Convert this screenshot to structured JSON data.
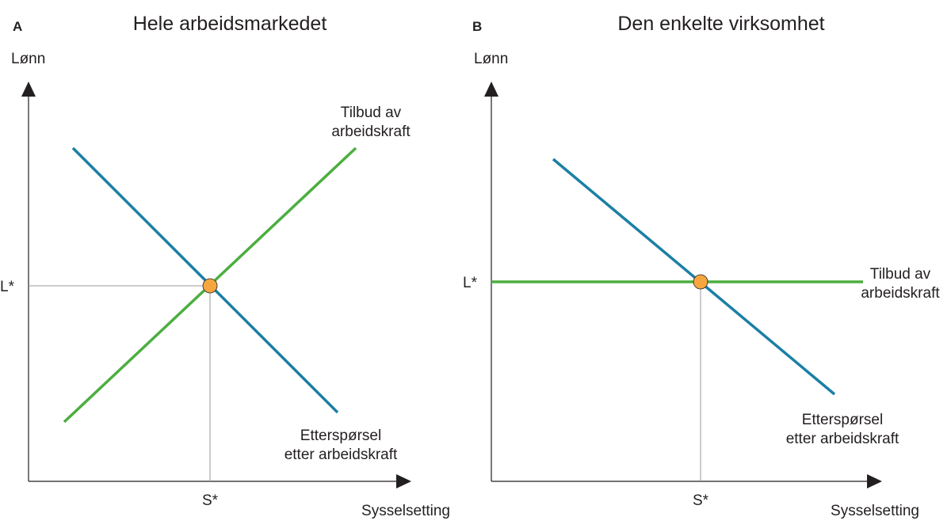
{
  "panels": [
    {
      "letter": "A",
      "title": "Hele arbeidsmarkedet",
      "y_axis_label": "Lønn",
      "x_axis_label": "Sysselsetting",
      "equilibrium_wage_label": "L*",
      "equilibrium_employment_label": "S*",
      "supply_label": [
        "Tilbud av",
        "arbeidskraft"
      ],
      "demand_label": [
        "Etterspørsel",
        "etter arbeidskraft"
      ]
    },
    {
      "letter": "B",
      "title": "Den enkelte virksomhet",
      "y_axis_label": "Lønn",
      "x_axis_label": "Sysselsetting",
      "equilibrium_wage_label": "L*",
      "equilibrium_employment_label": "S*",
      "supply_label": [
        "Tilbud av",
        "arbeidskraft"
      ],
      "demand_label": [
        "Etterspørsel",
        "etter arbeidskraft"
      ]
    }
  ],
  "colors": {
    "supply": "#4cae3f",
    "demand": "#1b7fa6",
    "equilibrium_point": "#f5a63f",
    "axis": "#231f20",
    "guide": "#999999"
  }
}
